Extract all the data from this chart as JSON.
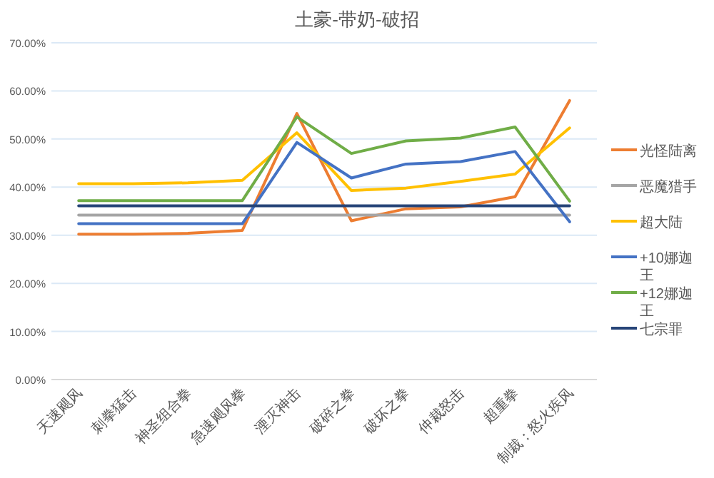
{
  "chart_data": {
    "type": "line",
    "title": "土豪-带奶-破招",
    "categories": [
      "天速飓风",
      "刺拳猛击",
      "神圣组合拳",
      "急速飓风拳",
      "湮灭神击",
      "破碎之拳",
      "破坏之拳",
      "仲裁怒击",
      "超重拳",
      "制裁：怒火疾风"
    ],
    "series": [
      {
        "name": "光怪陆离",
        "color": "#ed7d31",
        "values": [
          30.2,
          30.2,
          30.4,
          31.0,
          55.3,
          33.0,
          35.5,
          35.9,
          38.0,
          58.0
        ]
      },
      {
        "name": "恶魔猎手",
        "color": "#a5a5a5",
        "values": [
          34.2,
          34.2,
          34.2,
          34.2,
          34.2,
          34.2,
          34.2,
          34.2,
          34.2,
          34.2
        ]
      },
      {
        "name": "超大陆",
        "color": "#ffc000",
        "values": [
          40.7,
          40.7,
          40.9,
          41.4,
          51.3,
          39.3,
          39.8,
          41.2,
          42.7,
          52.3
        ]
      },
      {
        "name": "+10娜迦王",
        "color": "#4472c4",
        "values": [
          32.4,
          32.4,
          32.4,
          32.4,
          49.3,
          41.9,
          44.8,
          45.3,
          47.4,
          32.8
        ]
      },
      {
        "name": "+12娜迦王",
        "color": "#70ad47",
        "values": [
          37.2,
          37.2,
          37.2,
          37.2,
          54.6,
          47.0,
          49.6,
          50.2,
          52.5,
          37.1
        ]
      },
      {
        "name": "七宗罪",
        "color": "#264478",
        "values": [
          36.1,
          36.1,
          36.1,
          36.1,
          36.1,
          36.1,
          36.1,
          36.1,
          36.1,
          36.1
        ]
      }
    ],
    "ylim": [
      0,
      70
    ],
    "yticks": [
      {
        "value": 0,
        "label": "0.00%"
      },
      {
        "value": 10,
        "label": "10.00%"
      },
      {
        "value": 20,
        "label": "20.00%"
      },
      {
        "value": 30,
        "label": "30.00%"
      },
      {
        "value": 40,
        "label": "40.00%"
      },
      {
        "value": 50,
        "label": "50.00%"
      },
      {
        "value": 60,
        "label": "60.00%"
      },
      {
        "value": 70,
        "label": "70.00%"
      }
    ],
    "grid": "y",
    "legend": "right",
    "marker": "none",
    "line_style": "solid"
  }
}
